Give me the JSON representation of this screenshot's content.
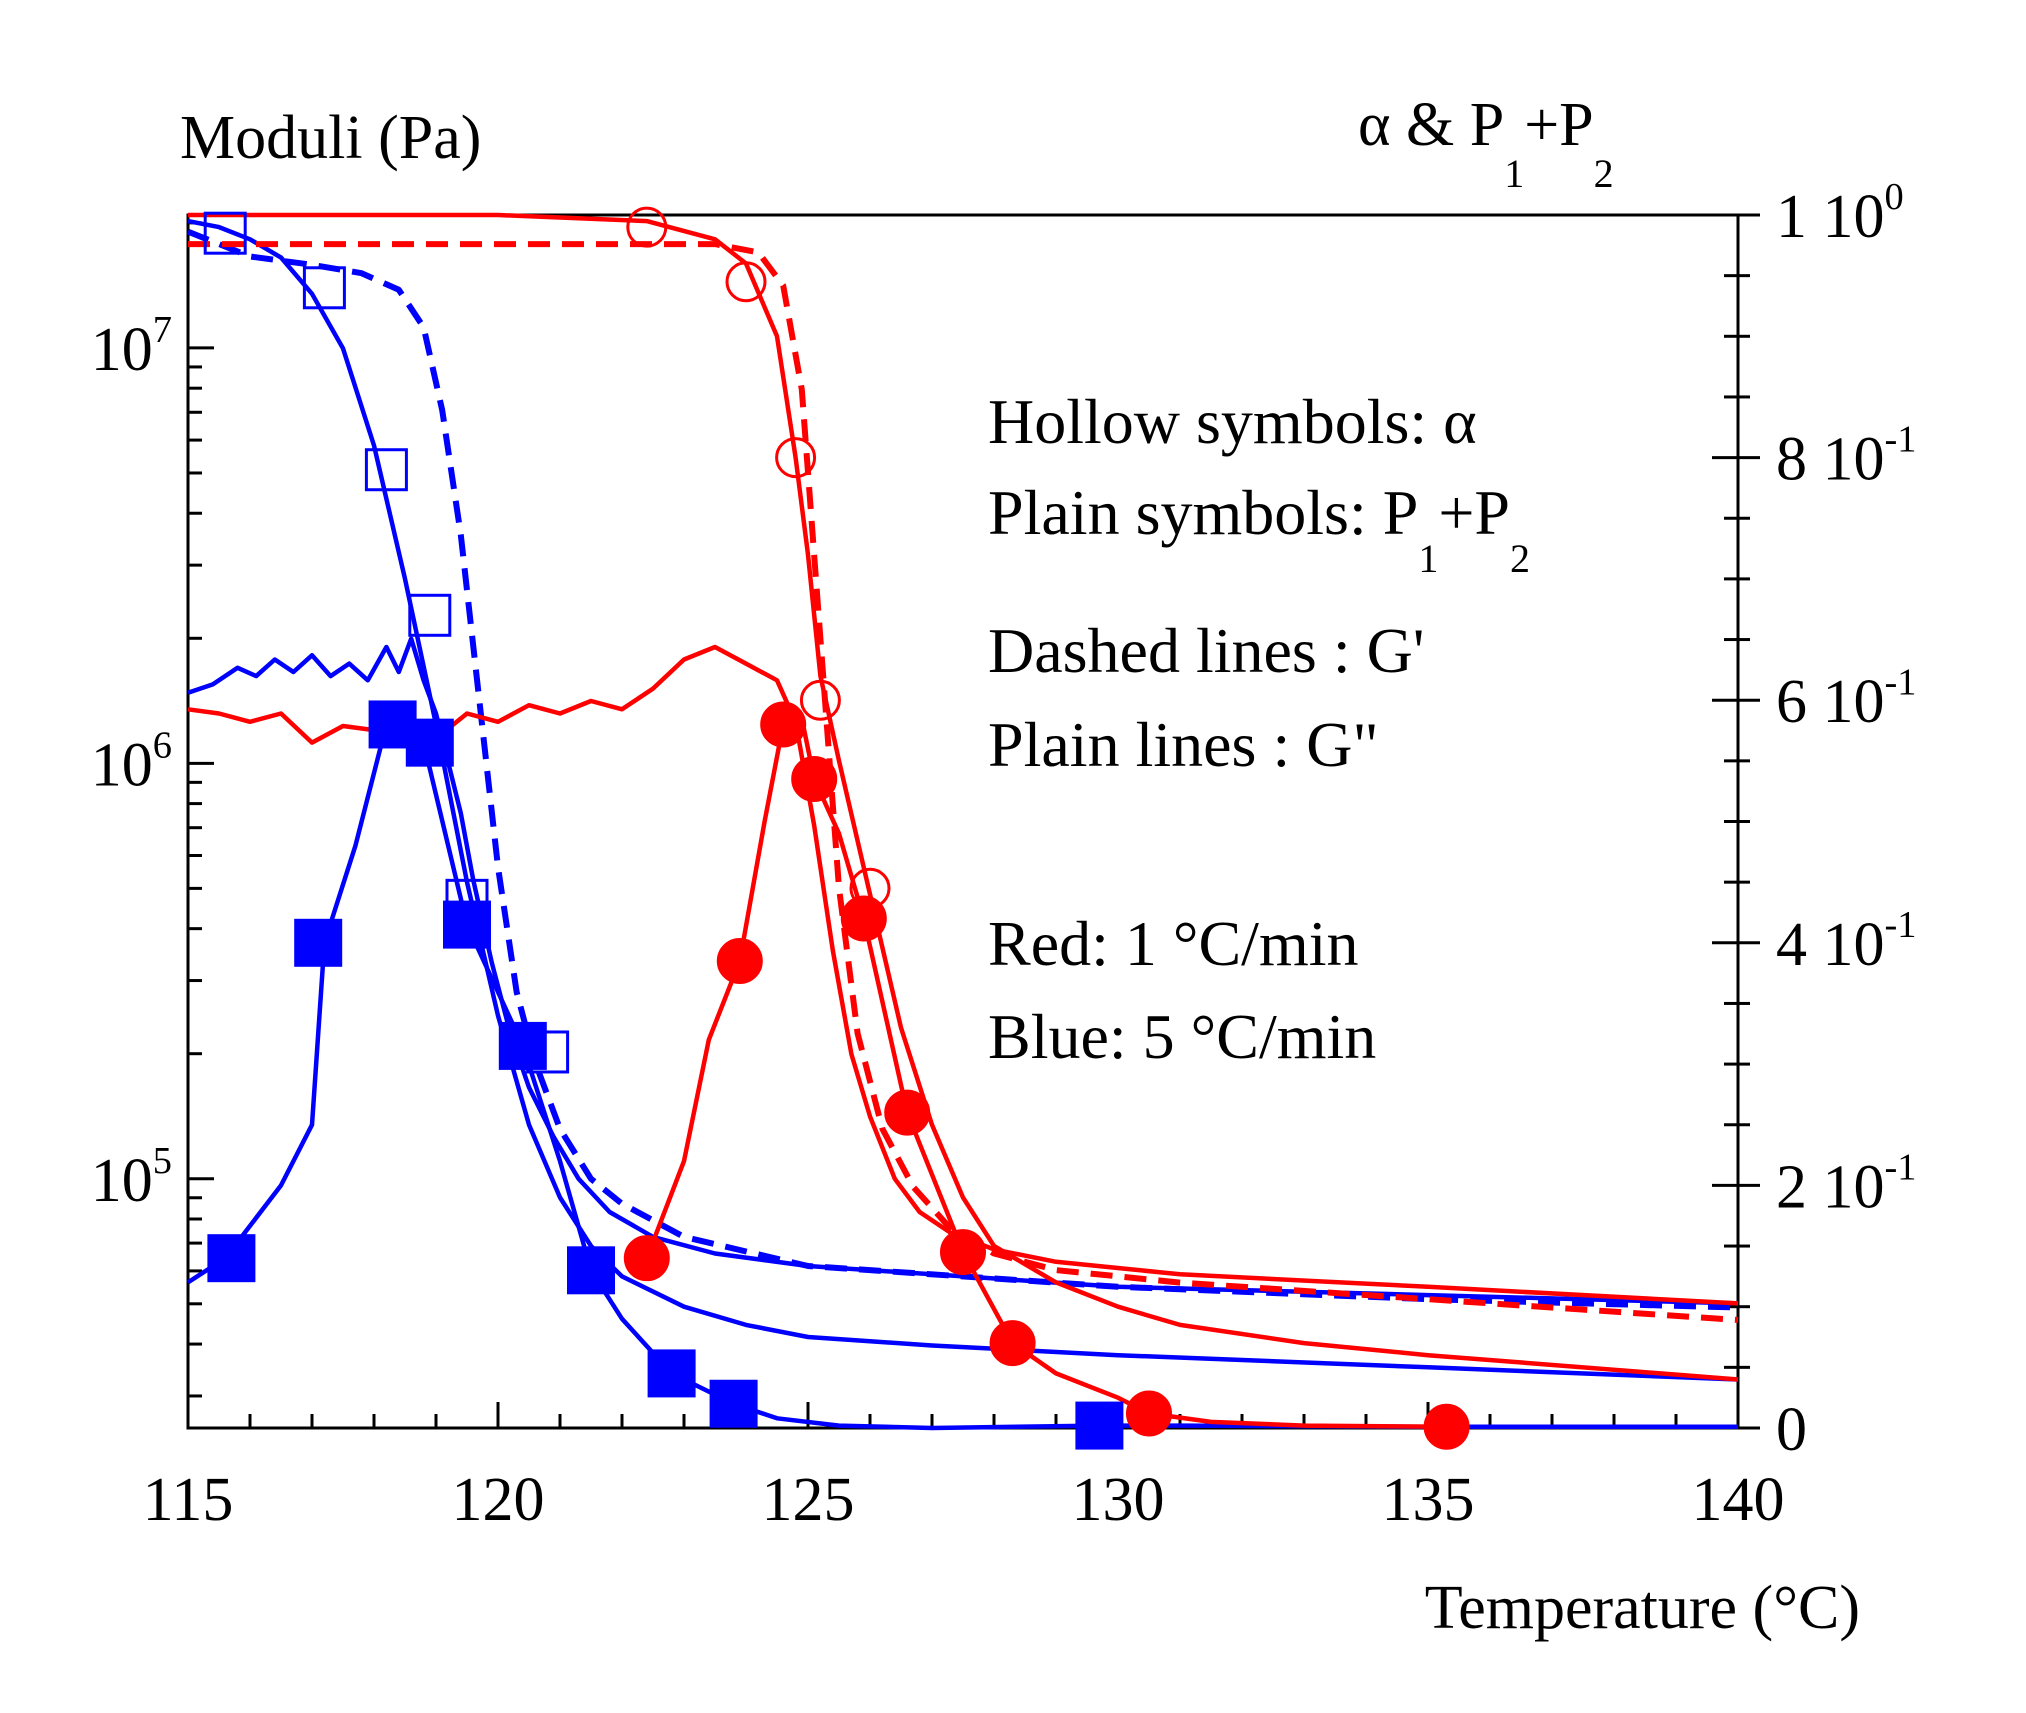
{
  "chart_data": {
    "type": "line",
    "left_axis_label": "Moduli (Pa)",
    "right_axis_label": {
      "text": "α & P",
      "sub1": "1",
      "plus": "+P",
      "sub2": "2"
    },
    "xlabel": "Temperature (°C)",
    "xlim": [
      115,
      140
    ],
    "x_ticks": [
      115,
      120,
      125,
      130,
      135,
      140
    ],
    "x_tick_labels": [
      "115",
      "120",
      "125",
      "130",
      "135",
      "140"
    ],
    "ylim_left_log10": [
      4.4,
      7.32
    ],
    "y_left_scale": "log",
    "y_left_ticks": [
      {
        "value": 5,
        "label": "10",
        "exp": "5"
      },
      {
        "value": 6,
        "label": "10",
        "exp": "6"
      },
      {
        "value": 7,
        "label": "10",
        "exp": "7"
      }
    ],
    "ylim_right": [
      0,
      1
    ],
    "y_right_ticks": [
      {
        "value": 0,
        "label": "0",
        "exp": ""
      },
      {
        "value": 0.2,
        "label": "2 10",
        "exp": "-1"
      },
      {
        "value": 0.4,
        "label": "4 10",
        "exp": "-1"
      },
      {
        "value": 0.6,
        "label": "6 10",
        "exp": "-1"
      },
      {
        "value": 0.8,
        "label": "8 10",
        "exp": "-1"
      },
      {
        "value": 1.0,
        "label": "1 10",
        "exp": "0"
      }
    ],
    "annotations": [
      {
        "text": "Hollow symbols: α"
      },
      {
        "text": "Plain symbols: P",
        "sub1": "1",
        "plus": "+P",
        "sub2": "2"
      },
      {
        "text": "Dashed lines : G'"
      },
      {
        "text": "Plain lines : G\""
      },
      {
        "text": "Red: 1 °C/min"
      },
      {
        "text": "Blue: 5 °C/min"
      }
    ],
    "series": [
      {
        "id": "blue-gp",
        "axis": "left",
        "color": "#0000ff",
        "dashed": true,
        "marker": "none",
        "x": [
          115,
          116,
          117,
          117.8,
          118.4,
          118.8,
          119.1,
          119.4,
          119.7,
          120.0,
          120.3,
          120.6,
          121.0,
          121.5,
          122.0,
          123.0,
          125.0,
          130.0,
          135.0,
          140.0
        ],
        "y_log10": [
          7.28,
          7.22,
          7.2,
          7.18,
          7.14,
          7.05,
          6.85,
          6.55,
          6.15,
          5.75,
          5.45,
          5.28,
          5.12,
          5.0,
          4.94,
          4.86,
          4.79,
          4.74,
          4.71,
          4.69
        ]
      },
      {
        "id": "blue-gpp",
        "axis": "left",
        "color": "#0000ff",
        "dashed": false,
        "marker": "none",
        "x": [
          115,
          115.4,
          115.8,
          116.1,
          116.4,
          116.7,
          117.0,
          117.3,
          117.6,
          117.9,
          118.2,
          118.4,
          118.6,
          118.8,
          119.0,
          119.2,
          119.4,
          119.6,
          119.9,
          120.2,
          120.5,
          120.9,
          121.3,
          121.8,
          122.5,
          123.5,
          125.0,
          127.0,
          130.0,
          135.0,
          140.0
        ],
        "y_log10": [
          6.17,
          6.19,
          6.23,
          6.21,
          6.25,
          6.22,
          6.26,
          6.21,
          6.24,
          6.2,
          6.28,
          6.22,
          6.3,
          6.2,
          6.12,
          6.0,
          5.88,
          5.72,
          5.52,
          5.35,
          5.22,
          5.1,
          5.0,
          4.92,
          4.86,
          4.82,
          4.79,
          4.77,
          4.74,
          4.72,
          4.7
        ]
      },
      {
        "id": "blue-alpha",
        "axis": "right",
        "color": "#0000ff",
        "dashed": false,
        "marker": "hollow-square",
        "x": [
          115,
          115.5,
          116,
          116.5,
          117,
          117.5,
          118,
          118.5,
          119,
          119.5,
          120,
          120.5,
          121,
          121.5,
          122,
          123,
          124,
          125,
          127,
          130,
          135,
          140
        ],
        "y": [
          0.995,
          0.99,
          0.98,
          0.965,
          0.935,
          0.89,
          0.81,
          0.7,
          0.58,
          0.45,
          0.34,
          0.25,
          0.19,
          0.15,
          0.125,
          0.1,
          0.085,
          0.075,
          0.068,
          0.06,
          0.05,
          0.04
        ],
        "marker_x": [
          115.6,
          117.2,
          118.2,
          118.9,
          119.5,
          120.8
        ],
        "marker_y": [
          0.985,
          0.94,
          0.79,
          0.67,
          0.435,
          0.31
        ]
      },
      {
        "id": "blue-p",
        "axis": "right",
        "color": "#0000ff",
        "dashed": false,
        "marker": "filled-square",
        "x": [
          115,
          115.6,
          116.5,
          117.0,
          117.2,
          117.7,
          118.2,
          118.8,
          119.5,
          120.4,
          121.0,
          121.5,
          122.0,
          122.8,
          123.8,
          124.5,
          125.5,
          127,
          129.7,
          131,
          135,
          140
        ],
        "y": [
          0.12,
          0.14,
          0.2,
          0.25,
          0.4,
          0.48,
          0.58,
          0.565,
          0.415,
          0.315,
          0.22,
          0.13,
          0.09,
          0.045,
          0.02,
          0.008,
          0.002,
          0.0,
          0.002,
          0.002,
          0.001,
          0.001
        ],
        "marker_x": [
          115.7,
          117.1,
          118.3,
          118.9,
          119.5,
          120.4,
          121.5,
          122.8,
          123.8,
          129.7
        ],
        "marker_y": [
          0.14,
          0.4,
          0.58,
          0.565,
          0.415,
          0.315,
          0.13,
          0.045,
          0.02,
          0.002
        ]
      },
      {
        "id": "red-gp",
        "axis": "left",
        "color": "#ff0000",
        "dashed": true,
        "marker": "none",
        "x": [
          115,
          118,
          120,
          122,
          123.5,
          124.2,
          124.6,
          124.9,
          125.2,
          125.5,
          125.8,
          126.2,
          126.7,
          127.3,
          128.0,
          129,
          131,
          135,
          140
        ],
        "y_log10": [
          7.25,
          7.25,
          7.25,
          7.25,
          7.25,
          7.23,
          7.15,
          6.9,
          6.3,
          5.7,
          5.35,
          5.12,
          4.98,
          4.88,
          4.82,
          4.78,
          4.75,
          4.71,
          4.66
        ]
      },
      {
        "id": "red-gpp",
        "axis": "left",
        "color": "#ff0000",
        "dashed": false,
        "marker": "none",
        "x": [
          115,
          115.5,
          116,
          116.5,
          117,
          117.5,
          118,
          118.5,
          119,
          119.5,
          120,
          120.5,
          121,
          121.5,
          122,
          122.5,
          123,
          123.5,
          124,
          124.5,
          124.8,
          125.1,
          125.4,
          125.7,
          126.0,
          126.4,
          126.8,
          127.3,
          128,
          129,
          131,
          135,
          140
        ],
        "y_log10": [
          6.13,
          6.12,
          6.1,
          6.12,
          6.05,
          6.09,
          6.08,
          6.11,
          6.06,
          6.12,
          6.1,
          6.14,
          6.12,
          6.15,
          6.13,
          6.18,
          6.25,
          6.28,
          6.24,
          6.2,
          6.1,
          5.85,
          5.55,
          5.3,
          5.15,
          5.0,
          4.92,
          4.87,
          4.83,
          4.8,
          4.77,
          4.74,
          4.7
        ]
      },
      {
        "id": "red-alpha",
        "axis": "right",
        "color": "#ff0000",
        "dashed": false,
        "marker": "hollow-circle",
        "x": [
          115,
          120,
          122.4,
          123.5,
          124.0,
          124.5,
          124.8,
          125.0,
          125.2,
          125.5,
          126.0,
          126.5,
          127,
          127.5,
          128,
          129,
          130,
          131,
          133,
          135,
          140
        ],
        "y": [
          1.0,
          1.0,
          0.995,
          0.98,
          0.96,
          0.9,
          0.8,
          0.72,
          0.62,
          0.55,
          0.44,
          0.33,
          0.25,
          0.19,
          0.15,
          0.12,
          0.1,
          0.085,
          0.07,
          0.06,
          0.04
        ],
        "marker_x": [
          122.4,
          124.0,
          124.8,
          125.2,
          126.0
        ],
        "marker_y": [
          0.99,
          0.945,
          0.8,
          0.6,
          0.445
        ]
      },
      {
        "id": "red-p",
        "axis": "right",
        "color": "#ff0000",
        "dashed": false,
        "marker": "filled-circle",
        "x": [
          122.4,
          123.0,
          123.4,
          123.9,
          124.3,
          124.6,
          124.9,
          125.1,
          125.5,
          125.9,
          126.6,
          127.5,
          128.3,
          129.0,
          130.0,
          130.5,
          131.5,
          133,
          135.3
        ],
        "y": [
          0.14,
          0.22,
          0.32,
          0.385,
          0.5,
          0.58,
          0.585,
          0.535,
          0.49,
          0.42,
          0.26,
          0.145,
          0.07,
          0.045,
          0.025,
          0.012,
          0.005,
          0.002,
          0.001
        ],
        "marker_x": [
          122.4,
          123.9,
          124.6,
          125.1,
          125.9,
          126.6,
          127.5,
          128.3,
          130.5,
          135.3
        ],
        "marker_y": [
          0.14,
          0.385,
          0.58,
          0.535,
          0.42,
          0.26,
          0.145,
          0.07,
          0.012,
          0.001
        ]
      }
    ]
  }
}
